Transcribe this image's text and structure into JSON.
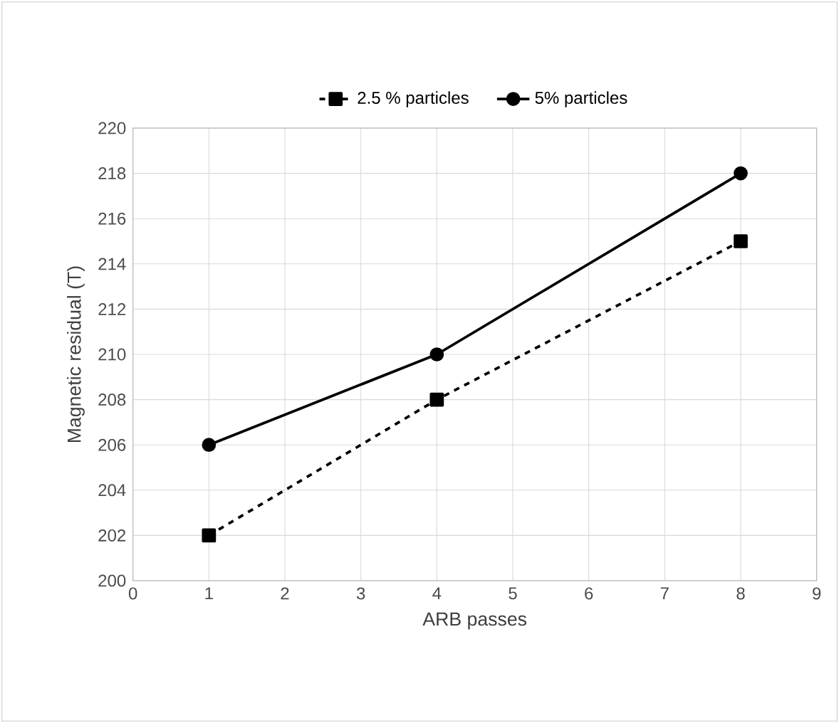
{
  "chart_data": {
    "type": "line",
    "xlabel": "ARB passes",
    "ylabel": "Magnetic residual (T)",
    "x": [
      1,
      4,
      8
    ],
    "series": [
      {
        "name": "2.5 % particles",
        "color": "#000000",
        "values": [
          202,
          208,
          215
        ],
        "marker": "square",
        "line_style": "dashed"
      },
      {
        "name": "5% particles",
        "color": "#000000",
        "values": [
          206,
          210,
          218
        ],
        "marker": "circle",
        "line_style": "solid"
      }
    ],
    "xlim": [
      0,
      9
    ],
    "xticks": [
      0,
      1,
      2,
      3,
      4,
      5,
      6,
      7,
      8,
      9
    ],
    "ylim": [
      200,
      220
    ],
    "yticks": [
      200,
      202,
      204,
      206,
      208,
      210,
      212,
      214,
      216,
      218,
      220
    ],
    "grid": true,
    "legend": "top"
  }
}
